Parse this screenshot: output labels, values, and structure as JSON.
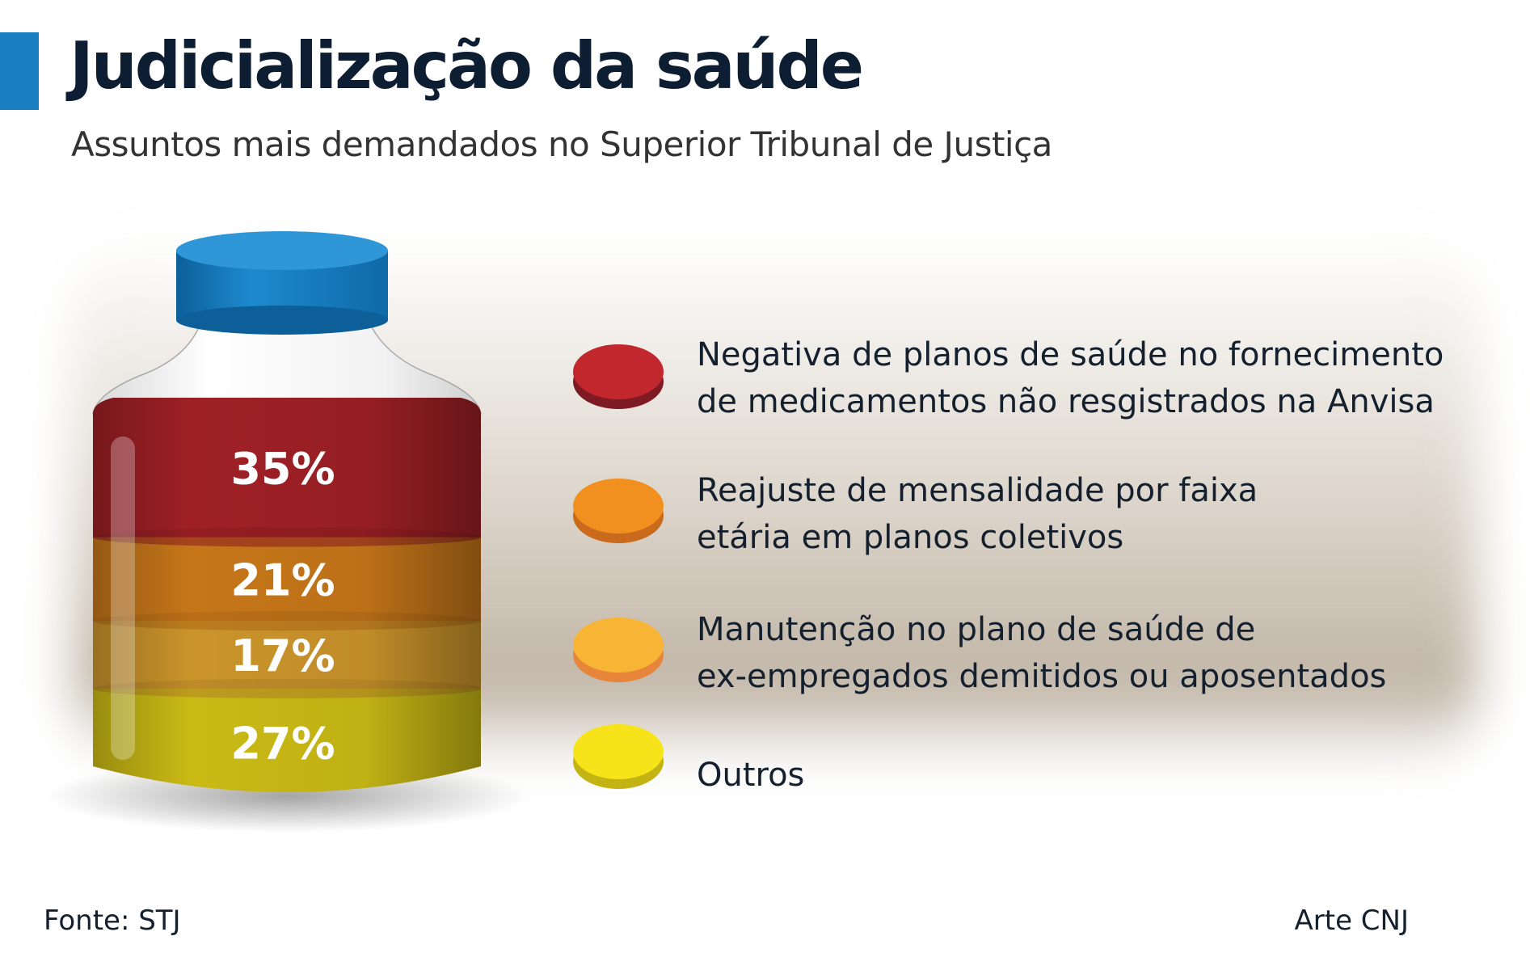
{
  "title": "Judicialização da saúde",
  "subtitle": "Assuntos mais demandados no Superior Tribunal de Justiça",
  "chart_data": {
    "type": "stacked-bar",
    "title": "Judicialização da saúde",
    "subtitle": "Assuntos mais demandados no Superior Tribunal de Justiça",
    "categories": [
      "Negativa de planos de saúde no fornecimento\nde medicamentos não resgistrados na Anvisa",
      "Reajuste de mensalidade por faixa\netária em planos coletivos",
      "Manutenção no plano de saúde de\nex-empregados demitidos ou aposentados",
      "Outros"
    ],
    "values": [
      35,
      21,
      17,
      27
    ],
    "value_labels": [
      "35%",
      "21%",
      "17%",
      "27%"
    ],
    "colors": [
      "#c1272d",
      "#f1901e",
      "#f8b535",
      "#f6e31a"
    ],
    "legend_position": "right"
  },
  "footer": {
    "source": "Fonte: STJ",
    "credit": "Arte CNJ"
  }
}
